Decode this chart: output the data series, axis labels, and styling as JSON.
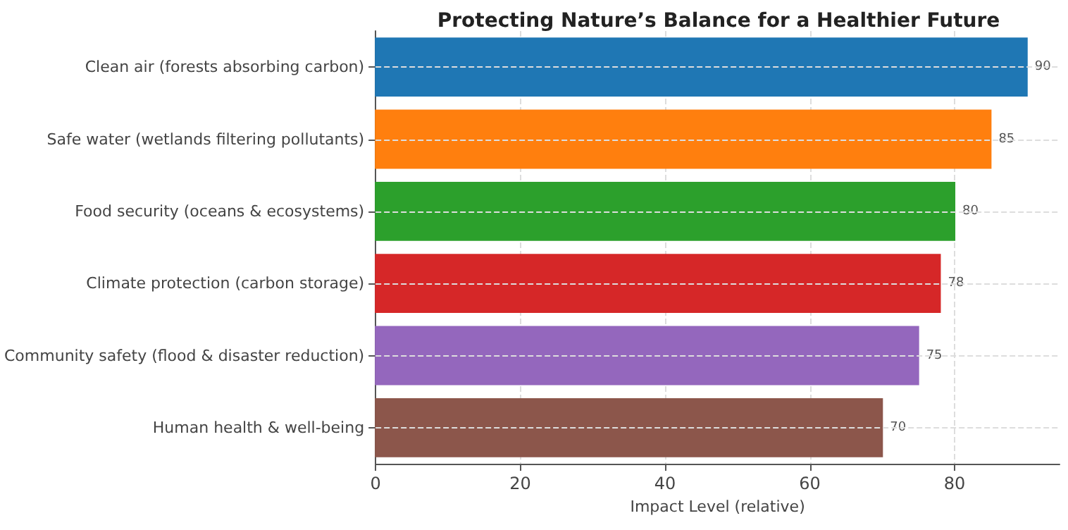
{
  "chart_data": {
    "type": "bar",
    "orientation": "horizontal",
    "title": "Protecting Nature’s Balance for a Healthier Future",
    "xlabel": "Impact Level (relative)",
    "categories": [
      "Clean air (forests absorbing carbon)",
      "Safe water (wetlands filtering pollutants)",
      "Food security (oceans & ecosystems)",
      "Climate protection (carbon storage)",
      "Community safety (flood & disaster reduction)",
      "Human health & well-being"
    ],
    "values": [
      90,
      85,
      80,
      78,
      75,
      70
    ],
    "colors": [
      "#1f77b4",
      "#ff7f0e",
      "#2ca02c",
      "#d62728",
      "#9467bd",
      "#8c564b"
    ],
    "xlim": [
      0,
      94.5
    ],
    "xticks": [
      0,
      20,
      40,
      60,
      80
    ],
    "grid": true,
    "data_labels": true
  }
}
